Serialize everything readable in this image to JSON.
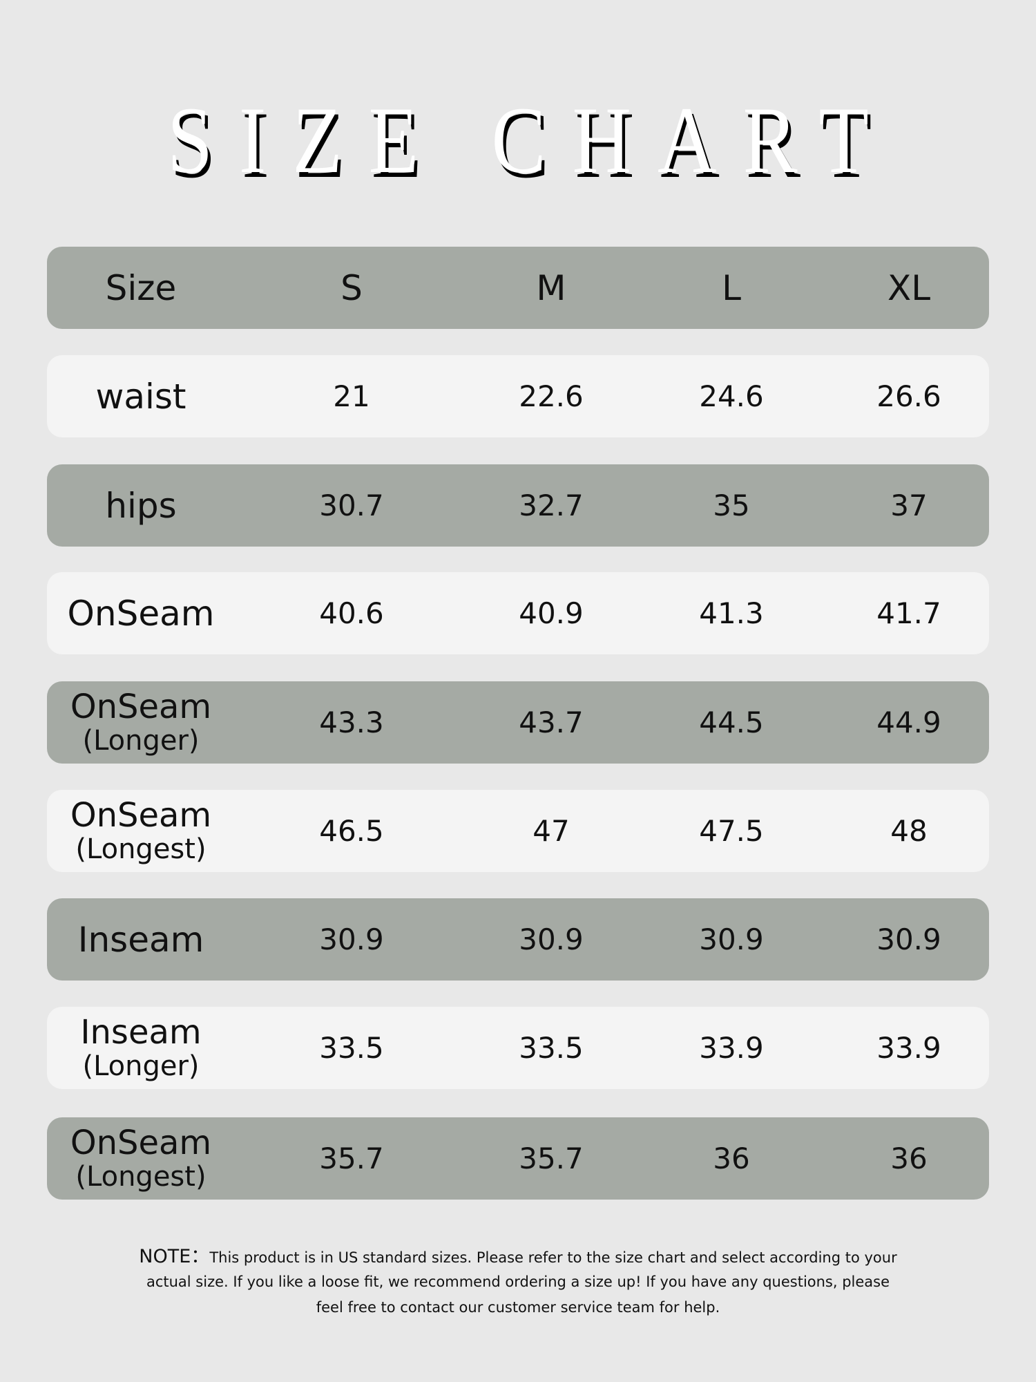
{
  "title": "SIZE CHART",
  "colors": {
    "background": "#e8e8e8",
    "grey_row": "#a5aaa4",
    "white_row": "#f4f4f4"
  },
  "header": [
    "Size",
    "S",
    "M",
    "L",
    "XL"
  ],
  "rows": [
    {
      "label": "waist",
      "sub": "",
      "values": [
        "21",
        "22.6",
        "24.6",
        "26.6"
      ]
    },
    {
      "label": "hips",
      "sub": "",
      "values": [
        "30.7",
        "32.7",
        "35",
        "37"
      ]
    },
    {
      "label": "OnSeam",
      "sub": "",
      "values": [
        "40.6",
        "40.9",
        "41.3",
        "41.7"
      ]
    },
    {
      "label": "OnSeam",
      "sub": "(Longer)",
      "values": [
        "43.3",
        "43.7",
        "44.5",
        "44.9"
      ]
    },
    {
      "label": "OnSeam",
      "sub": "(Longest)",
      "values": [
        "46.5",
        "47",
        "47.5",
        "48"
      ]
    },
    {
      "label": "Inseam",
      "sub": "",
      "values": [
        "30.9",
        "30.9",
        "30.9",
        "30.9"
      ]
    },
    {
      "label": "Inseam",
      "sub": "(Longer)",
      "values": [
        "33.5",
        "33.5",
        "33.9",
        "33.9"
      ]
    },
    {
      "label": "OnSeam",
      "sub": "(Longest)",
      "values": [
        "35.7",
        "35.7",
        "36",
        "36"
      ]
    }
  ],
  "note": {
    "prefix": "NOTE：",
    "line1": "This product is in US standard sizes. Please refer to the size chart and select according to your",
    "line2": "actual size. If you like a loose fit, we  recommend ordering a size up! If you have any questions, please",
    "line3": "feel free to contact our customer service team for help."
  }
}
